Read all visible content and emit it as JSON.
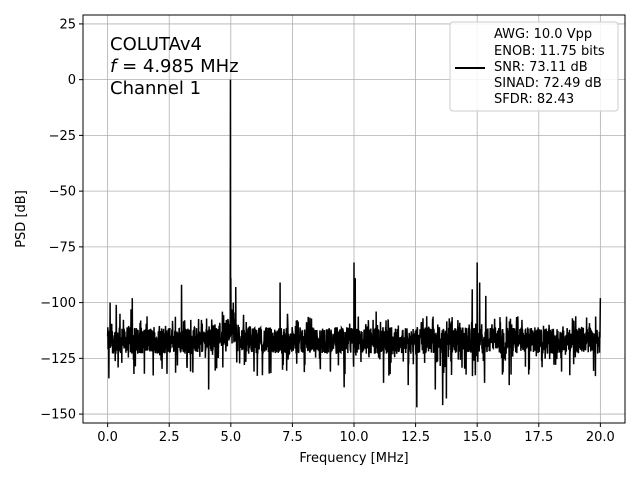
{
  "chart_data": {
    "type": "line",
    "title": "",
    "xlabel": "Frequency [MHz]",
    "ylabel": "PSD [dB]",
    "xlim": [
      -1,
      21
    ],
    "ylim": [
      -154,
      29
    ],
    "grid": true,
    "x_ticks": [
      0.0,
      2.5,
      5.0,
      7.5,
      10.0,
      12.5,
      15.0,
      17.5,
      20.0
    ],
    "x_tick_labels": [
      "0.0",
      "2.5",
      "5.0",
      "7.5",
      "10.0",
      "12.5",
      "15.0",
      "17.5",
      "20.0"
    ],
    "y_ticks": [
      25,
      0,
      -25,
      -50,
      -75,
      -100,
      -125,
      -150
    ],
    "y_tick_labels": [
      "25",
      "0",
      "−25",
      "−50",
      "−75",
      "−100",
      "−125",
      "−150"
    ],
    "annotation": {
      "line1": "COLUTAv4",
      "line2_var": "f",
      "line2_rest": " = 4.985 MHz",
      "line3": "Channel 1"
    },
    "legend": {
      "placement": "upper right",
      "lines": [
        "AWG: 10.0 Vpp",
        "ENOB: 11.75 bits",
        "SNR: 73.11 dB",
        "SINAD: 72.49 dB",
        "SFDR: 82.43"
      ]
    },
    "series": [
      {
        "color": "#000000",
        "noise_floor_db": -117,
        "x_range": [
          0,
          20
        ],
        "peaks": [
          {
            "x": 4.985,
            "y": 0
          },
          {
            "x": 0.1,
            "y": -100
          },
          {
            "x": 0.35,
            "y": -101
          },
          {
            "x": 0.5,
            "y": -105
          },
          {
            "x": 0.95,
            "y": -103
          },
          {
            "x": 1.0,
            "y": -98
          },
          {
            "x": 3.0,
            "y": -92
          },
          {
            "x": 4.9,
            "y": -108
          },
          {
            "x": 5.0,
            "y": -89
          },
          {
            "x": 5.1,
            "y": -100
          },
          {
            "x": 5.2,
            "y": -93
          },
          {
            "x": 7.0,
            "y": -91
          },
          {
            "x": 7.3,
            "y": -105
          },
          {
            "x": 10.0,
            "y": -82
          },
          {
            "x": 10.05,
            "y": -89
          },
          {
            "x": 10.9,
            "y": -104
          },
          {
            "x": 11.3,
            "y": -108
          },
          {
            "x": 12.8,
            "y": -107
          },
          {
            "x": 14.8,
            "y": -94
          },
          {
            "x": 15.0,
            "y": -82
          },
          {
            "x": 15.1,
            "y": -91
          },
          {
            "x": 15.35,
            "y": -97
          },
          {
            "x": 18.9,
            "y": -108
          },
          {
            "x": 20.0,
            "y": -98
          }
        ],
        "dips": [
          {
            "x": 0.05,
            "y": -134
          },
          {
            "x": 3.0,
            "y": -141
          },
          {
            "x": 4.1,
            "y": -139
          },
          {
            "x": 5.55,
            "y": -128
          },
          {
            "x": 9.6,
            "y": -138
          },
          {
            "x": 11.2,
            "y": -136
          },
          {
            "x": 12.2,
            "y": -137
          },
          {
            "x": 12.55,
            "y": -147
          },
          {
            "x": 13.3,
            "y": -139
          },
          {
            "x": 13.6,
            "y": -146
          },
          {
            "x": 13.75,
            "y": -143
          },
          {
            "x": 14.8,
            "y": -140
          },
          {
            "x": 15.3,
            "y": -136
          },
          {
            "x": 16.3,
            "y": -137
          },
          {
            "x": 19.8,
            "y": -133
          }
        ]
      }
    ]
  }
}
